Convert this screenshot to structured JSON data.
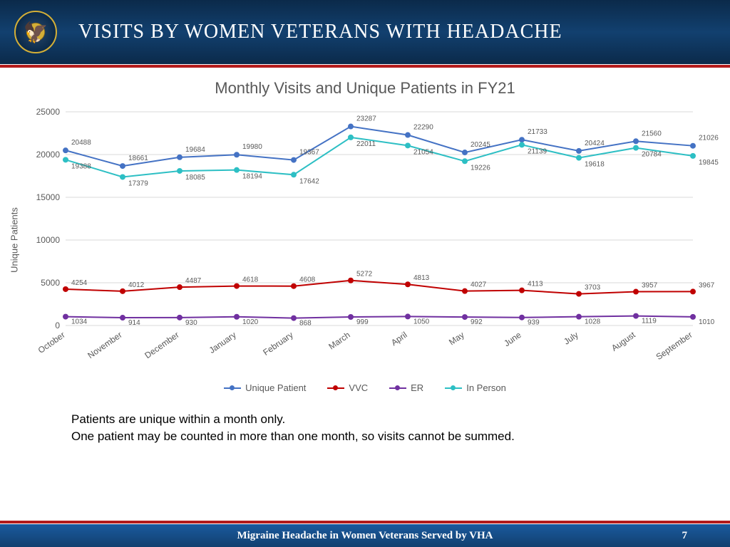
{
  "header": {
    "title": "VISITS BY WOMEN VETERANS WITH HEADACHE"
  },
  "chart": {
    "type": "line",
    "title": "Monthly Visits and Unique Patients in FY21",
    "ylabel": "Unique Patients",
    "ylim": [
      0,
      25000
    ],
    "ytick_step": 5000,
    "categories": [
      "October",
      "November",
      "December",
      "January",
      "February",
      "March",
      "April",
      "May",
      "June",
      "July",
      "August",
      "September"
    ],
    "series": [
      {
        "name": "Unique Patient",
        "color": "#4472c4",
        "values": [
          20488,
          18661,
          19684,
          19980,
          19367,
          23287,
          22290,
          20245,
          21733,
          20424,
          21560,
          21026
        ]
      },
      {
        "name": "VVC",
        "color": "#c00000",
        "values": [
          4254,
          4012,
          4487,
          4618,
          4608,
          5272,
          4813,
          4027,
          4113,
          3703,
          3957,
          3967
        ]
      },
      {
        "name": "ER",
        "color": "#7030a0",
        "values": [
          1034,
          914,
          930,
          1020,
          868,
          999,
          1050,
          992,
          939,
          1028,
          1119,
          1010
        ]
      },
      {
        "name": "In Person",
        "color": "#2dbfc4",
        "values": [
          19388,
          17379,
          18085,
          18194,
          17642,
          22011,
          21054,
          19226,
          21139,
          19618,
          20784,
          19845
        ]
      }
    ],
    "background_color": "#ffffff",
    "grid_color": "#d9d9d9",
    "marker_radius": 4
  },
  "notes": {
    "line1": "Patients are unique within a month only.",
    "line2": "One patient may be counted in more than one month, so visits cannot be summed."
  },
  "footer": {
    "text": "Migraine Headache in Women Veterans Served by VHA",
    "page": "7"
  }
}
